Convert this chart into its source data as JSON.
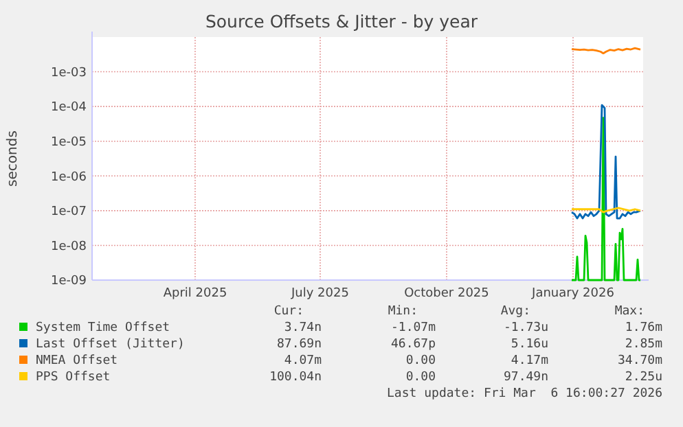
{
  "chart_data": {
    "type": "line",
    "title": "Source Offsets & Jitter - by year",
    "ylabel": "seconds",
    "log": "y",
    "grid": true,
    "legend": "bottom",
    "xlim": [
      "2025-01-16",
      "2026-02-21"
    ],
    "xticks": [
      {
        "value": "2025-04-01",
        "label": "April 2025"
      },
      {
        "value": "2025-07-01",
        "label": "July 2025"
      },
      {
        "value": "2025-10-01",
        "label": "October 2025"
      },
      {
        "value": "2026-01-01",
        "label": "January 2026"
      }
    ],
    "ylim": [
      1e-09,
      0.01
    ],
    "yticks": [
      {
        "value": 1e-09,
        "label": "1e-09"
      },
      {
        "value": 1e-08,
        "label": "1e-08"
      },
      {
        "value": 1e-07,
        "label": "1e-07"
      },
      {
        "value": 1e-06,
        "label": "1e-06"
      },
      {
        "value": 1e-05,
        "label": "1e-05"
      },
      {
        "value": 0.0001,
        "label": "1e-04"
      },
      {
        "value": 0.001,
        "label": "1e-03"
      }
    ],
    "series": [
      {
        "name": "System Time Offset",
        "color": "#00cc00",
        "x": [
          "2025-12-31",
          "2026-01-03",
          "2026-01-04",
          "2026-01-05",
          "2026-01-09",
          "2026-01-10",
          "2026-01-11",
          "2026-01-12",
          "2026-01-22",
          "2026-01-23",
          "2026-01-24",
          "2026-01-31",
          "2026-02-01",
          "2026-02-02",
          "2026-02-03",
          "2026-02-04",
          "2026-02-05",
          "2026-02-06",
          "2026-02-07",
          "2026-02-16",
          "2026-02-17",
          "2026-02-18",
          "2026-02-19"
        ],
        "values": [
          1e-09,
          1e-09,
          4.7e-09,
          1e-09,
          1e-09,
          1.9e-08,
          1.2e-08,
          1e-09,
          1e-09,
          4.7e-05,
          1e-09,
          1e-09,
          1.1e-08,
          1e-09,
          1e-09,
          2.3e-08,
          1.5e-08,
          3e-08,
          1e-09,
          1e-09,
          3.9e-09,
          1e-09,
          1e-09
        ]
      },
      {
        "name": "Last Offset (Jitter)",
        "color": "#0066b3",
        "x": [
          "2025-12-31",
          "2026-01-02",
          "2026-01-04",
          "2026-01-06",
          "2026-01-08",
          "2026-01-10",
          "2026-01-12",
          "2026-01-14",
          "2026-01-16",
          "2026-01-18",
          "2026-01-20",
          "2026-01-22",
          "2026-01-23",
          "2026-01-24",
          "2026-01-25",
          "2026-01-27",
          "2026-01-29",
          "2026-01-31",
          "2026-02-01",
          "2026-02-02",
          "2026-02-04",
          "2026-02-06",
          "2026-02-08",
          "2026-02-10",
          "2026-02-12",
          "2026-02-14",
          "2026-02-16",
          "2026-02-19"
        ],
        "values": [
          9e-08,
          8e-08,
          6e-08,
          8e-08,
          6e-08,
          8e-08,
          7e-08,
          9e-08,
          7e-08,
          8e-08,
          1e-07,
          0.00011,
          0.0001,
          9e-05,
          8e-08,
          7e-08,
          8e-08,
          9e-08,
          3.6e-06,
          6e-08,
          6e-08,
          8e-08,
          7e-08,
          9e-08,
          8e-08,
          9e-08,
          9e-08,
          1e-07
        ]
      },
      {
        "name": "NMEA Offset",
        "color": "#ff8000",
        "x": [
          "2025-12-31",
          "2026-01-03",
          "2026-01-06",
          "2026-01-09",
          "2026-01-12",
          "2026-01-15",
          "2026-01-18",
          "2026-01-21",
          "2026-01-23",
          "2026-01-25",
          "2026-01-28",
          "2026-01-31",
          "2026-02-03",
          "2026-02-06",
          "2026-02-09",
          "2026-02-12",
          "2026-02-15",
          "2026-02-19"
        ],
        "values": [
          0.0045,
          0.0044,
          0.0043,
          0.0044,
          0.0042,
          0.0043,
          0.0041,
          0.0038,
          0.0034,
          0.0038,
          0.0043,
          0.0041,
          0.0045,
          0.0042,
          0.0046,
          0.0044,
          0.0048,
          0.0044
        ]
      },
      {
        "name": "PPS Offset",
        "color": "#ffcc00",
        "x": [
          "2025-12-31",
          "2026-01-04",
          "2026-01-08",
          "2026-01-12",
          "2026-01-16",
          "2026-01-20",
          "2026-01-23",
          "2026-01-26",
          "2026-01-30",
          "2026-02-03",
          "2026-02-07",
          "2026-02-11",
          "2026-02-15",
          "2026-02-19"
        ],
        "values": [
          1.1e-07,
          1.1e-07,
          1.1e-07,
          1.1e-07,
          1.1e-07,
          1.1e-07,
          9e-08,
          1e-07,
          1.1e-07,
          1.2e-07,
          1.1e-07,
          1e-07,
          1.1e-07,
          1e-07
        ]
      }
    ],
    "annotations": [
      "Cur:",
      "Min:",
      "Avg:",
      "Max:",
      "3.74n",
      "-1.07m",
      "-1.73u",
      "1.76m",
      "87.69n",
      "46.67p",
      "5.16u",
      "2.85m",
      "4.07m",
      "0.00",
      "4.17m",
      "34.70m",
      "100.04n",
      "0.00",
      "97.49n",
      "2.25u",
      "Last update: Fri Mar  6 16:00:27 2026"
    ]
  }
}
